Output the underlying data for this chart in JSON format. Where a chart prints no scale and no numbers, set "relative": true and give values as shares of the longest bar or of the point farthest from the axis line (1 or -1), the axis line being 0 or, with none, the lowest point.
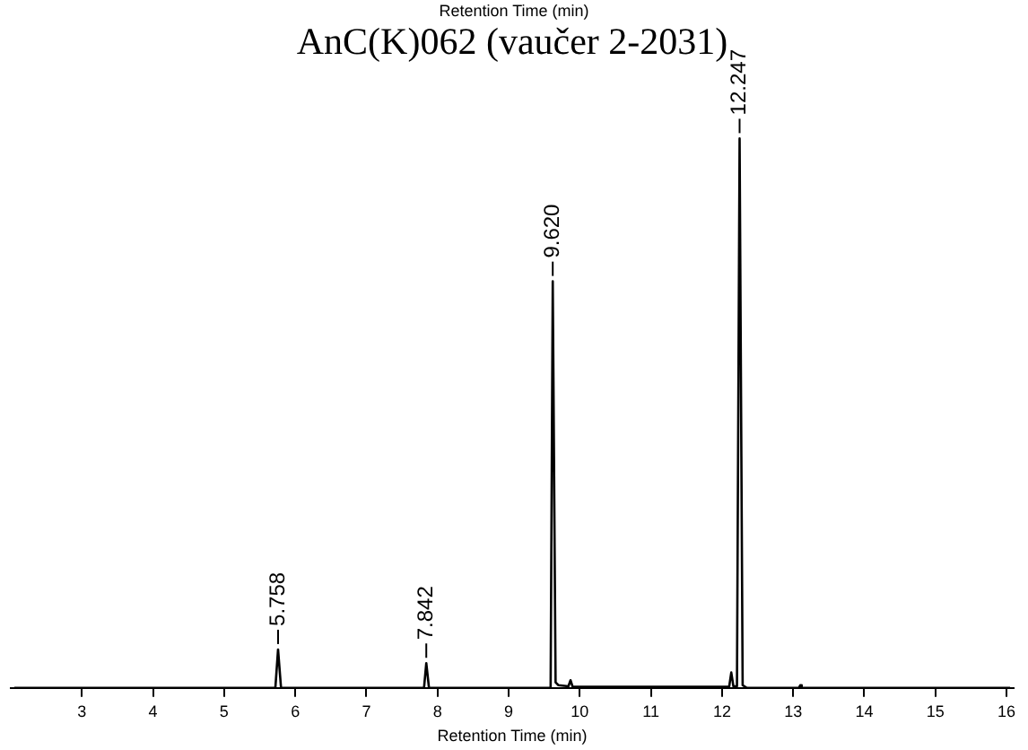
{
  "chart_data": {
    "type": "line",
    "title": "AnC(K)062 (vaučer 2-2031)",
    "xlabel": "Retention Time (min)",
    "relative": true,
    "legend": false,
    "grid": false,
    "marker": "none",
    "line_style": "solid",
    "xlim": [
      2.0,
      16.1
    ],
    "xticks": [
      3,
      4,
      5,
      6,
      7,
      8,
      9,
      10,
      11,
      12,
      13,
      14,
      15,
      16
    ],
    "x": [
      2.05,
      5.72,
      5.758,
      5.8,
      7.81,
      7.842,
      7.88,
      9.59,
      9.62,
      9.66,
      9.7,
      9.84,
      9.87,
      9.9,
      10.9,
      12.1,
      12.13,
      12.16,
      12.21,
      12.247,
      12.29,
      12.35,
      13.08,
      13.1,
      13.12,
      16.05
    ],
    "series": [
      {
        "color": "#000000",
        "values": [
          0,
          0,
          0.07,
          0,
          0,
          0.045,
          0,
          0,
          0.74,
          0.01,
          0.005,
          0.003,
          0.014,
          0.002,
          0.002,
          0.002,
          0.028,
          0.003,
          0.003,
          1,
          0.005,
          0,
          0,
          0.005,
          0,
          0
        ]
      }
    ],
    "annotations": [
      "Retention Time (min)",
      {
        "text": "5.758",
        "x": 5.758,
        "y": 0.07
      },
      {
        "text": "7.842",
        "x": 7.842,
        "y": 0.045
      },
      {
        "text": "9.620",
        "x": 9.62,
        "y": 0.74
      },
      {
        "text": "12.247",
        "x": 12.247,
        "y": 1
      }
    ]
  }
}
